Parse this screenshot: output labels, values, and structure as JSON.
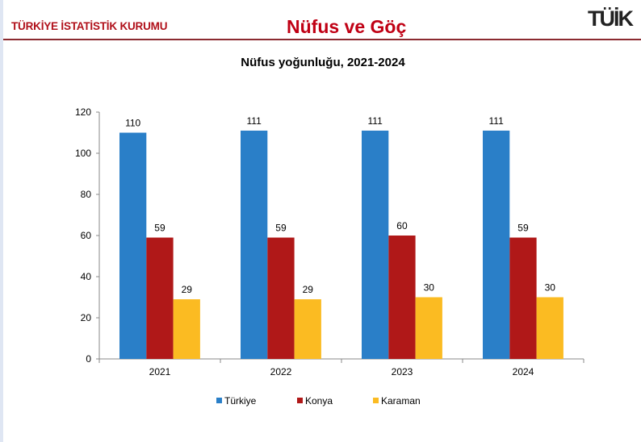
{
  "header": {
    "organization": "TÜRKİYE İSTATİSTİK KURUMU",
    "title": "Nüfus ve Göç",
    "logo_text": "TÜİK"
  },
  "chart_data": {
    "type": "bar",
    "title": "Nüfus yoğunluğu, 2021-2024",
    "categories": [
      "2021",
      "2022",
      "2023",
      "2024"
    ],
    "series": [
      {
        "name": "Türkiye",
        "color": "#2a7fc8",
        "values": [
          110,
          111,
          111,
          111
        ]
      },
      {
        "name": "Konya",
        "color": "#b01818",
        "values": [
          59,
          59,
          60,
          59
        ]
      },
      {
        "name": "Karaman",
        "color": "#fbbb22",
        "values": [
          29,
          29,
          30,
          30
        ]
      }
    ],
    "ylim": [
      0,
      120
    ],
    "yticks": [
      "0",
      "20",
      "40",
      "60",
      "80",
      "100",
      "120"
    ],
    "xlabel": "",
    "ylabel": "",
    "grid": false,
    "legend": "bottom"
  }
}
